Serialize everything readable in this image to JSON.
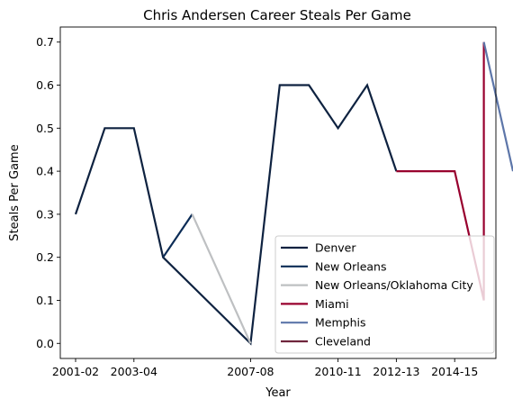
{
  "chart_data": {
    "type": "line",
    "title": "Chris Andersen Career Steals Per Game",
    "xlabel": "Year",
    "ylabel": "Steals Per Game",
    "categories": [
      "2001-02",
      "2002-03",
      "2003-04",
      "2004-05",
      "2005-06",
      "2006-07",
      "2007-08",
      "2008-09",
      "2009-10",
      "2010-11",
      "2011-12",
      "2012-13",
      "2013-14",
      "2014-15",
      "2015-16"
    ],
    "x_tick_labels": [
      "2001-02",
      "2003-04",
      "2007-08",
      "2010-11",
      "2012-13",
      "2014-15"
    ],
    "y_ticks": [
      "0.0",
      "0.1",
      "0.2",
      "0.3",
      "0.4",
      "0.5",
      "0.6",
      "0.7"
    ],
    "ylim": [
      -0.035,
      0.735
    ],
    "grid": false,
    "legend_position": "lower right",
    "series": [
      {
        "name": "Denver",
        "color": "#0E2240",
        "points": [
          {
            "x": "2001-02",
            "y": 0.3
          },
          {
            "x": "2002-03",
            "y": 0.5
          },
          {
            "x": "2003-04",
            "y": 0.5
          },
          {
            "x": "2004-05",
            "y": 0.2
          },
          {
            "x": "2007-08",
            "y": 0.0
          },
          {
            "x": "2008-09",
            "y": 0.6
          },
          {
            "x": "2009-10",
            "y": 0.6
          },
          {
            "x": "2010-11",
            "y": 0.5
          },
          {
            "x": "2011-12",
            "y": 0.6
          },
          {
            "x": "2012-13",
            "y": 0.4
          }
        ]
      },
      {
        "name": "New Orleans",
        "color": "#0C2C56",
        "points": [
          {
            "x": "2004-05",
            "y": 0.2
          },
          {
            "x": "2005-06",
            "y": 0.3
          }
        ]
      },
      {
        "name": "New Orleans/Oklahoma City",
        "color": "#BEC0C2",
        "points": [
          {
            "x": "2005-06",
            "y": 0.3
          },
          {
            "x": "2007-08",
            "y": 0.0
          }
        ]
      },
      {
        "name": "Miami",
        "color": "#98002E",
        "points": [
          {
            "x": "2012-13",
            "y": 0.4
          },
          {
            "x": "2014-15",
            "y": 0.4
          },
          {
            "x": "2015-16",
            "y": 0.1
          },
          {
            "x": "2015-16",
            "y": 0.7
          }
        ]
      },
      {
        "name": "Memphis",
        "color": "#5D76A9",
        "points": [
          {
            "x": "2015-16",
            "y": 0.7
          },
          {
            "x": "2016-17",
            "y": 0.4
          }
        ]
      },
      {
        "name": "Cleveland",
        "color": "#6F263D",
        "points": []
      }
    ]
  }
}
